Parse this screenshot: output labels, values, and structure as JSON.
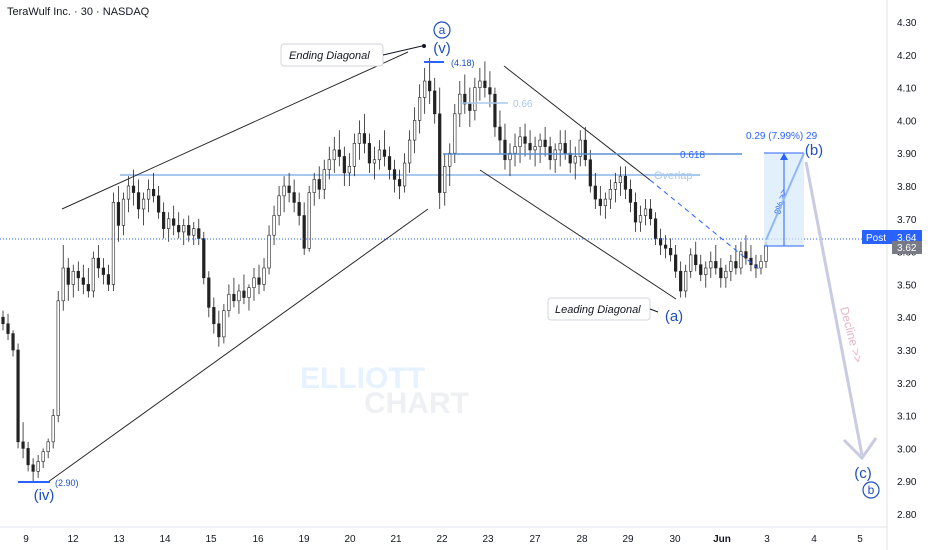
{
  "header": {
    "title": "TeraWulf Inc. · 30 · NASDAQ"
  },
  "watermark": {
    "line1": "ELLIOTT",
    "line2": "CHART"
  },
  "chart_data": {
    "type": "candlestick",
    "ylim": [
      2.75,
      4.35
    ],
    "grid": false,
    "y_ticks": [
      "4.30",
      "4.20",
      "4.10",
      "4.00",
      "3.90",
      "3.80",
      "3.70",
      "3.60",
      "3.50",
      "3.40",
      "3.30",
      "3.20",
      "3.10",
      "3.00",
      "2.90",
      "2.80"
    ],
    "x_ticks": [
      "9",
      "12",
      "13",
      "14",
      "15",
      "16",
      "19",
      "20",
      "21",
      "22",
      "23",
      "27",
      "28",
      "29",
      "30",
      "Jun",
      "3",
      "4",
      "5"
    ],
    "candles": [
      {
        "o": 3.4,
        "h": 3.42,
        "l": 3.36,
        "c": 3.38
      },
      {
        "o": 3.38,
        "h": 3.41,
        "l": 3.33,
        "c": 3.35
      },
      {
        "o": 3.35,
        "h": 3.36,
        "l": 3.28,
        "c": 3.3
      },
      {
        "o": 3.3,
        "h": 3.32,
        "l": 3.0,
        "c": 3.02
      },
      {
        "o": 3.02,
        "h": 3.08,
        "l": 2.97,
        "c": 3.0
      },
      {
        "o": 3.0,
        "h": 3.02,
        "l": 2.93,
        "c": 2.95
      },
      {
        "o": 2.95,
        "h": 2.97,
        "l": 2.9,
        "c": 2.93
      },
      {
        "o": 2.93,
        "h": 2.98,
        "l": 2.91,
        "c": 2.96
      },
      {
        "o": 2.96,
        "h": 3.0,
        "l": 2.94,
        "c": 2.99
      },
      {
        "o": 2.99,
        "h": 3.03,
        "l": 2.97,
        "c": 3.02
      },
      {
        "o": 3.02,
        "h": 3.12,
        "l": 3.0,
        "c": 3.1
      },
      {
        "o": 3.1,
        "h": 3.48,
        "l": 3.08,
        "c": 3.45
      },
      {
        "o": 3.45,
        "h": 3.62,
        "l": 3.42,
        "c": 3.55
      },
      {
        "o": 3.55,
        "h": 3.58,
        "l": 3.45,
        "c": 3.5
      },
      {
        "o": 3.5,
        "h": 3.56,
        "l": 3.46,
        "c": 3.54
      },
      {
        "o": 3.54,
        "h": 3.57,
        "l": 3.48,
        "c": 3.52
      },
      {
        "o": 3.52,
        "h": 3.56,
        "l": 3.47,
        "c": 3.5
      },
      {
        "o": 3.5,
        "h": 3.55,
        "l": 3.46,
        "c": 3.48
      },
      {
        "o": 3.48,
        "h": 3.6,
        "l": 3.46,
        "c": 3.58
      },
      {
        "o": 3.58,
        "h": 3.62,
        "l": 3.52,
        "c": 3.55
      },
      {
        "o": 3.55,
        "h": 3.58,
        "l": 3.5,
        "c": 3.53
      },
      {
        "o": 3.53,
        "h": 3.56,
        "l": 3.48,
        "c": 3.5
      },
      {
        "o": 3.5,
        "h": 3.78,
        "l": 3.48,
        "c": 3.75
      },
      {
        "o": 3.75,
        "h": 3.8,
        "l": 3.63,
        "c": 3.68
      },
      {
        "o": 3.68,
        "h": 3.78,
        "l": 3.65,
        "c": 3.76
      },
      {
        "o": 3.76,
        "h": 3.83,
        "l": 3.72,
        "c": 3.8
      },
      {
        "o": 3.8,
        "h": 3.85,
        "l": 3.74,
        "c": 3.78
      },
      {
        "o": 3.78,
        "h": 3.82,
        "l": 3.7,
        "c": 3.73
      },
      {
        "o": 3.73,
        "h": 3.78,
        "l": 3.68,
        "c": 3.76
      },
      {
        "o": 3.76,
        "h": 3.82,
        "l": 3.72,
        "c": 3.79
      },
      {
        "o": 3.79,
        "h": 3.84,
        "l": 3.75,
        "c": 3.77
      },
      {
        "o": 3.77,
        "h": 3.8,
        "l": 3.7,
        "c": 3.72
      },
      {
        "o": 3.72,
        "h": 3.75,
        "l": 3.64,
        "c": 3.67
      },
      {
        "o": 3.67,
        "h": 3.72,
        "l": 3.63,
        "c": 3.7
      },
      {
        "o": 3.7,
        "h": 3.74,
        "l": 3.65,
        "c": 3.68
      },
      {
        "o": 3.68,
        "h": 3.72,
        "l": 3.64,
        "c": 3.66
      },
      {
        "o": 3.66,
        "h": 3.7,
        "l": 3.62,
        "c": 3.68
      },
      {
        "o": 3.68,
        "h": 3.71,
        "l": 3.63,
        "c": 3.65
      },
      {
        "o": 3.65,
        "h": 3.69,
        "l": 3.62,
        "c": 3.67
      },
      {
        "o": 3.67,
        "h": 3.7,
        "l": 3.62,
        "c": 3.64
      },
      {
        "o": 3.64,
        "h": 3.66,
        "l": 3.5,
        "c": 3.52
      },
      {
        "o": 3.52,
        "h": 3.54,
        "l": 3.4,
        "c": 3.43
      },
      {
        "o": 3.43,
        "h": 3.46,
        "l": 3.35,
        "c": 3.38
      },
      {
        "o": 3.38,
        "h": 3.42,
        "l": 3.31,
        "c": 3.34
      },
      {
        "o": 3.34,
        "h": 3.44,
        "l": 3.32,
        "c": 3.42
      },
      {
        "o": 3.42,
        "h": 3.5,
        "l": 3.4,
        "c": 3.47
      },
      {
        "o": 3.47,
        "h": 3.52,
        "l": 3.43,
        "c": 3.45
      },
      {
        "o": 3.45,
        "h": 3.5,
        "l": 3.41,
        "c": 3.48
      },
      {
        "o": 3.48,
        "h": 3.53,
        "l": 3.44,
        "c": 3.46
      },
      {
        "o": 3.46,
        "h": 3.5,
        "l": 3.42,
        "c": 3.49
      },
      {
        "o": 3.49,
        "h": 3.55,
        "l": 3.45,
        "c": 3.52
      },
      {
        "o": 3.52,
        "h": 3.56,
        "l": 3.47,
        "c": 3.5
      },
      {
        "o": 3.5,
        "h": 3.58,
        "l": 3.48,
        "c": 3.55
      },
      {
        "o": 3.55,
        "h": 3.68,
        "l": 3.53,
        "c": 3.65
      },
      {
        "o": 3.65,
        "h": 3.74,
        "l": 3.62,
        "c": 3.71
      },
      {
        "o": 3.71,
        "h": 3.8,
        "l": 3.68,
        "c": 3.77
      },
      {
        "o": 3.77,
        "h": 3.83,
        "l": 3.72,
        "c": 3.8
      },
      {
        "o": 3.8,
        "h": 3.84,
        "l": 3.75,
        "c": 3.78
      },
      {
        "o": 3.78,
        "h": 3.82,
        "l": 3.72,
        "c": 3.75
      },
      {
        "o": 3.75,
        "h": 3.78,
        "l": 3.68,
        "c": 3.71
      },
      {
        "o": 3.71,
        "h": 3.75,
        "l": 3.59,
        "c": 3.61
      },
      {
        "o": 3.61,
        "h": 3.8,
        "l": 3.6,
        "c": 3.78
      },
      {
        "o": 3.78,
        "h": 3.84,
        "l": 3.74,
        "c": 3.82
      },
      {
        "o": 3.82,
        "h": 3.86,
        "l": 3.76,
        "c": 3.79
      },
      {
        "o": 3.79,
        "h": 3.88,
        "l": 3.76,
        "c": 3.85
      },
      {
        "o": 3.85,
        "h": 3.92,
        "l": 3.82,
        "c": 3.88
      },
      {
        "o": 3.88,
        "h": 3.95,
        "l": 3.84,
        "c": 3.91
      },
      {
        "o": 3.91,
        "h": 3.97,
        "l": 3.86,
        "c": 3.89
      },
      {
        "o": 3.89,
        "h": 3.92,
        "l": 3.8,
        "c": 3.84
      },
      {
        "o": 3.84,
        "h": 3.9,
        "l": 3.8,
        "c": 3.86
      },
      {
        "o": 3.86,
        "h": 3.96,
        "l": 3.83,
        "c": 3.93
      },
      {
        "o": 3.93,
        "h": 4.0,
        "l": 3.88,
        "c": 3.96
      },
      {
        "o": 3.96,
        "h": 4.02,
        "l": 3.9,
        "c": 3.93
      },
      {
        "o": 3.93,
        "h": 3.96,
        "l": 3.84,
        "c": 3.87
      },
      {
        "o": 3.87,
        "h": 3.92,
        "l": 3.82,
        "c": 3.88
      },
      {
        "o": 3.88,
        "h": 3.94,
        "l": 3.85,
        "c": 3.91
      },
      {
        "o": 3.91,
        "h": 3.97,
        "l": 3.86,
        "c": 3.89
      },
      {
        "o": 3.89,
        "h": 3.92,
        "l": 3.82,
        "c": 3.85
      },
      {
        "o": 3.85,
        "h": 3.88,
        "l": 3.78,
        "c": 3.82
      },
      {
        "o": 3.82,
        "h": 3.85,
        "l": 3.76,
        "c": 3.8
      },
      {
        "o": 3.8,
        "h": 3.9,
        "l": 3.78,
        "c": 3.87
      },
      {
        "o": 3.87,
        "h": 3.97,
        "l": 3.84,
        "c": 3.94
      },
      {
        "o": 3.94,
        "h": 4.04,
        "l": 3.9,
        "c": 4.0
      },
      {
        "o": 4.0,
        "h": 4.11,
        "l": 3.96,
        "c": 4.07
      },
      {
        "o": 4.07,
        "h": 4.16,
        "l": 4.02,
        "c": 4.12
      },
      {
        "o": 4.12,
        "h": 4.19,
        "l": 4.05,
        "c": 4.09
      },
      {
        "o": 4.09,
        "h": 4.13,
        "l": 3.99,
        "c": 4.02
      },
      {
        "o": 4.02,
        "h": 4.1,
        "l": 3.73,
        "c": 3.78
      },
      {
        "o": 3.78,
        "h": 3.9,
        "l": 3.74,
        "c": 3.86
      },
      {
        "o": 3.86,
        "h": 3.93,
        "l": 3.8,
        "c": 3.9
      },
      {
        "o": 3.9,
        "h": 4.05,
        "l": 3.87,
        "c": 4.02
      },
      {
        "o": 4.02,
        "h": 4.12,
        "l": 3.98,
        "c": 4.08
      },
      {
        "o": 4.08,
        "h": 4.14,
        "l": 4.02,
        "c": 4.05
      },
      {
        "o": 4.05,
        "h": 4.1,
        "l": 3.98,
        "c": 4.03
      },
      {
        "o": 4.03,
        "h": 4.13,
        "l": 4.0,
        "c": 4.1
      },
      {
        "o": 4.1,
        "h": 4.16,
        "l": 4.06,
        "c": 4.12
      },
      {
        "o": 4.12,
        "h": 4.18,
        "l": 4.07,
        "c": 4.1
      },
      {
        "o": 4.1,
        "h": 4.15,
        "l": 4.04,
        "c": 4.08
      },
      {
        "o": 4.08,
        "h": 4.1,
        "l": 3.95,
        "c": 3.98
      },
      {
        "o": 3.98,
        "h": 4.03,
        "l": 3.9,
        "c": 3.94
      },
      {
        "o": 3.94,
        "h": 3.99,
        "l": 3.85,
        "c": 3.88
      },
      {
        "o": 3.88,
        "h": 3.93,
        "l": 3.83,
        "c": 3.9
      },
      {
        "o": 3.9,
        "h": 3.96,
        "l": 3.86,
        "c": 3.92
      },
      {
        "o": 3.92,
        "h": 3.98,
        "l": 3.87,
        "c": 3.95
      },
      {
        "o": 3.95,
        "h": 3.99,
        "l": 3.89,
        "c": 3.93
      },
      {
        "o": 3.93,
        "h": 3.97,
        "l": 3.88,
        "c": 3.91
      },
      {
        "o": 3.91,
        "h": 3.95,
        "l": 3.86,
        "c": 3.92
      },
      {
        "o": 3.92,
        "h": 3.96,
        "l": 3.87,
        "c": 3.94
      },
      {
        "o": 3.94,
        "h": 3.98,
        "l": 3.89,
        "c": 3.92
      },
      {
        "o": 3.92,
        "h": 3.95,
        "l": 3.85,
        "c": 3.88
      },
      {
        "o": 3.88,
        "h": 3.93,
        "l": 3.84,
        "c": 3.91
      },
      {
        "o": 3.91,
        "h": 3.97,
        "l": 3.86,
        "c": 3.93
      },
      {
        "o": 3.93,
        "h": 3.97,
        "l": 3.88,
        "c": 3.9
      },
      {
        "o": 3.9,
        "h": 3.94,
        "l": 3.84,
        "c": 3.87
      },
      {
        "o": 3.87,
        "h": 3.92,
        "l": 3.82,
        "c": 3.89
      },
      {
        "o": 3.89,
        "h": 3.97,
        "l": 3.86,
        "c": 3.94
      },
      {
        "o": 3.94,
        "h": 3.98,
        "l": 3.86,
        "c": 3.88
      },
      {
        "o": 3.88,
        "h": 3.91,
        "l": 3.78,
        "c": 3.8
      },
      {
        "o": 3.8,
        "h": 3.84,
        "l": 3.73,
        "c": 3.76
      },
      {
        "o": 3.76,
        "h": 3.8,
        "l": 3.71,
        "c": 3.74
      },
      {
        "o": 3.74,
        "h": 3.78,
        "l": 3.7,
        "c": 3.76
      },
      {
        "o": 3.76,
        "h": 3.82,
        "l": 3.73,
        "c": 3.79
      },
      {
        "o": 3.79,
        "h": 3.84,
        "l": 3.75,
        "c": 3.81
      },
      {
        "o": 3.81,
        "h": 3.86,
        "l": 3.77,
        "c": 3.83
      },
      {
        "o": 3.83,
        "h": 3.86,
        "l": 3.76,
        "c": 3.79
      },
      {
        "o": 3.79,
        "h": 3.82,
        "l": 3.72,
        "c": 3.75
      },
      {
        "o": 3.75,
        "h": 3.78,
        "l": 3.66,
        "c": 3.69
      },
      {
        "o": 3.69,
        "h": 3.74,
        "l": 3.66,
        "c": 3.71
      },
      {
        "o": 3.71,
        "h": 3.76,
        "l": 3.68,
        "c": 3.73
      },
      {
        "o": 3.73,
        "h": 3.76,
        "l": 3.68,
        "c": 3.7
      },
      {
        "o": 3.7,
        "h": 3.72,
        "l": 3.62,
        "c": 3.64
      },
      {
        "o": 3.64,
        "h": 3.67,
        "l": 3.59,
        "c": 3.62
      },
      {
        "o": 3.62,
        "h": 3.65,
        "l": 3.58,
        "c": 3.61
      },
      {
        "o": 3.61,
        "h": 3.64,
        "l": 3.57,
        "c": 3.59
      },
      {
        "o": 3.59,
        "h": 3.62,
        "l": 3.52,
        "c": 3.54
      },
      {
        "o": 3.54,
        "h": 3.57,
        "l": 3.46,
        "c": 3.48
      },
      {
        "o": 3.48,
        "h": 3.56,
        "l": 3.46,
        "c": 3.54
      },
      {
        "o": 3.54,
        "h": 3.61,
        "l": 3.52,
        "c": 3.59
      },
      {
        "o": 3.59,
        "h": 3.63,
        "l": 3.54,
        "c": 3.56
      },
      {
        "o": 3.56,
        "h": 3.59,
        "l": 3.51,
        "c": 3.53
      },
      {
        "o": 3.53,
        "h": 3.57,
        "l": 3.49,
        "c": 3.55
      },
      {
        "o": 3.55,
        "h": 3.6,
        "l": 3.52,
        "c": 3.57
      },
      {
        "o": 3.57,
        "h": 3.62,
        "l": 3.53,
        "c": 3.55
      },
      {
        "o": 3.55,
        "h": 3.58,
        "l": 3.49,
        "c": 3.52
      },
      {
        "o": 3.52,
        "h": 3.56,
        "l": 3.49,
        "c": 3.54
      },
      {
        "o": 3.54,
        "h": 3.59,
        "l": 3.51,
        "c": 3.57
      },
      {
        "o": 3.57,
        "h": 3.62,
        "l": 3.53,
        "c": 3.55
      },
      {
        "o": 3.55,
        "h": 3.63,
        "l": 3.53,
        "c": 3.6
      },
      {
        "o": 3.6,
        "h": 3.65,
        "l": 3.56,
        "c": 3.58
      },
      {
        "o": 3.58,
        "h": 3.62,
        "l": 3.54,
        "c": 3.56
      },
      {
        "o": 3.56,
        "h": 3.59,
        "l": 3.52,
        "c": 3.55
      },
      {
        "o": 3.55,
        "h": 3.59,
        "l": 3.53,
        "c": 3.57
      },
      {
        "o": 3.57,
        "h": 3.63,
        "l": 3.55,
        "c": 3.62
      }
    ],
    "price_levels": [
      {
        "label": "0.618",
        "value": 3.9
      },
      {
        "label": "0.66",
        "value": 4.05
      },
      {
        "label": "Overlap",
        "value": 3.84
      },
      {
        "label": "(4.18)",
        "value": 4.18
      },
      {
        "label": "(2.90)",
        "value": 2.9
      }
    ],
    "projection": {
      "label": "0.29 (7.99%) 29",
      "inside": "8% >>",
      "from": 3.62,
      "to": 3.9
    },
    "annotations": {
      "ending_diagonal": "Ending Diagonal",
      "leading_diagonal": "Leading Diagonal",
      "wave_v": "(v)",
      "wave_iv": "(iv)",
      "wave_a_circled": "a",
      "wave_b_circled": "b",
      "wave_a": "(a)",
      "wave_b": "(b)",
      "wave_c": "(c)",
      "decline": "Decline >>"
    },
    "last_price": {
      "label": "Post",
      "value": "3.64",
      "value2": "3.62"
    }
  },
  "colors": {
    "blue": "#2962ff",
    "wave": "#1e4fbd",
    "level": "#5b8fd8",
    "light": "#a8c8ee",
    "decline": "#e8b4c4",
    "arrow": "#c9cbe3"
  }
}
